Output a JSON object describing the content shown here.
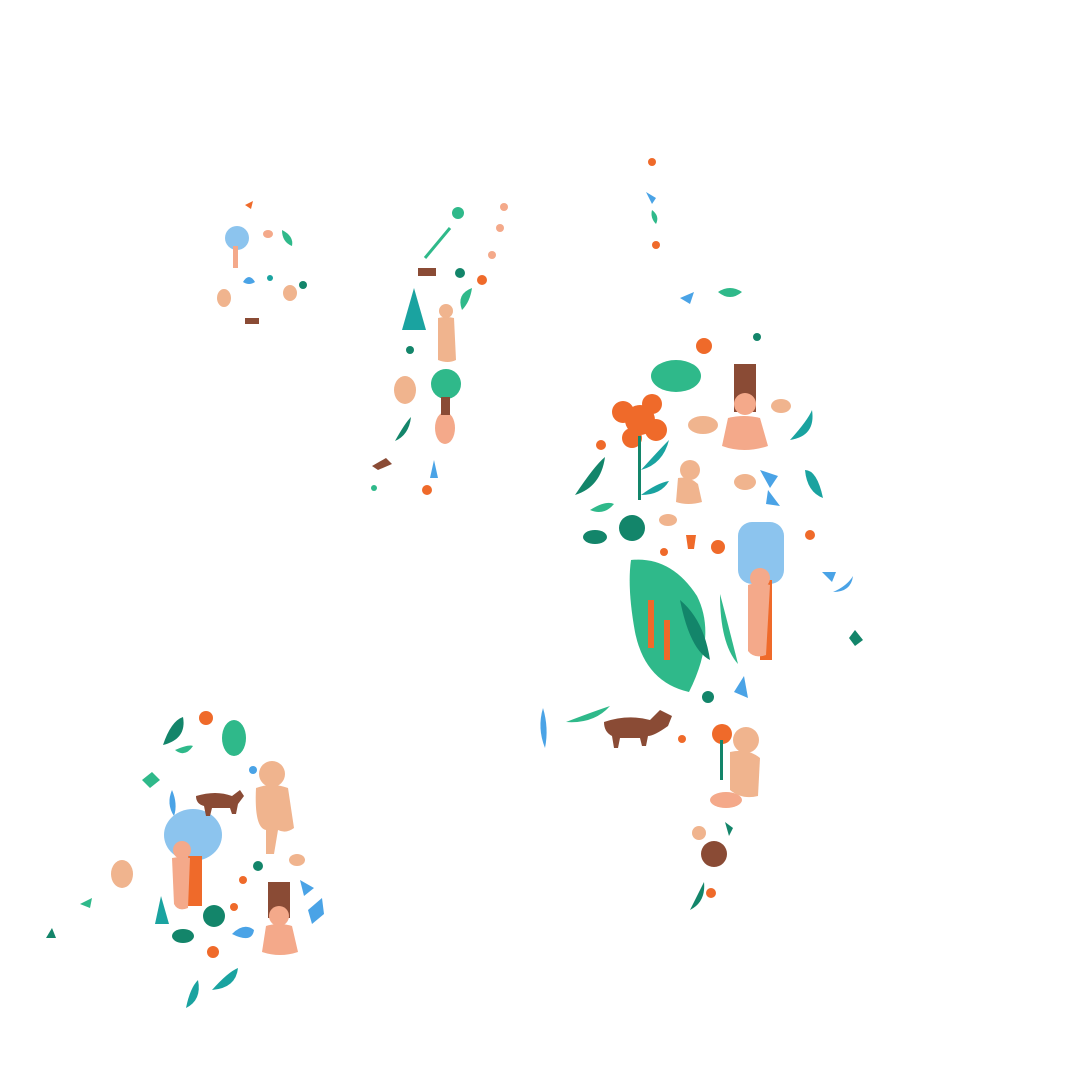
{
  "palette": {
    "background": "#ffffff",
    "green": "#2fb98a",
    "dark_green": "#13856a",
    "orange": "#ef6a2a",
    "skin": "#f0b48e",
    "peach": "#f4a98a",
    "blue": "#4aa3e6",
    "light_blue": "#8cc4ee",
    "brown": "#8a4b35",
    "teal": "#1aa3a0"
  },
  "clusters": [
    {
      "name": "small-top-left-cluster",
      "motifs": [
        "tree-icon",
        "person-icon",
        "bird-icon",
        "leaf-icon",
        "dog-icon"
      ]
    },
    {
      "name": "diagonal-strip-cluster",
      "motifs": [
        "leaf-icon",
        "dog-icon",
        "person-icon",
        "tree-icon",
        "plant-icon"
      ]
    },
    {
      "name": "top-thin-strip-cluster",
      "motifs": [
        "flower-icon",
        "bird-icon",
        "leaf-icon"
      ]
    },
    {
      "name": "large-right-cluster",
      "motifs": [
        "flower-icon",
        "tree-icon",
        "person-icon",
        "rabbit-icon",
        "bird-icon",
        "bush-icon",
        "dog-icon",
        "turtle-icon",
        "plant-icon",
        "squirrel-icon"
      ]
    },
    {
      "name": "bottom-left-cluster",
      "motifs": [
        "tree-icon",
        "person-icon",
        "dog-icon",
        "turtle-icon",
        "plant-icon",
        "leaf-icon",
        "rabbit-icon"
      ]
    }
  ]
}
